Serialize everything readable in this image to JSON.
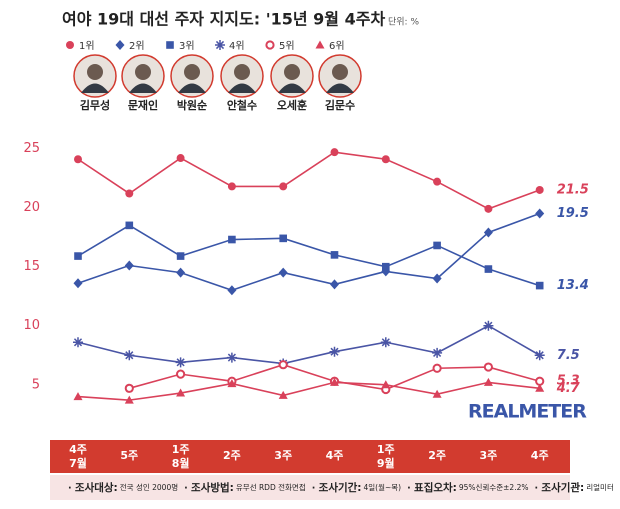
{
  "chart_data": {
    "type": "line",
    "title": "여야 19대 대선 주자 지지도: '15년 9월 4주차",
    "unit": "단위: %",
    "categories": [
      "4주",
      "5주",
      "1주",
      "2주",
      "3주",
      "4주",
      "1주",
      "2주",
      "3주",
      "4주"
    ],
    "sublabels": [
      "7월",
      null,
      "8월",
      null,
      null,
      null,
      "9월",
      null,
      null,
      null
    ],
    "ylim": [
      1,
      27
    ],
    "yticks": [
      5,
      10,
      15,
      20,
      25
    ],
    "series": [
      {
        "name": "1위",
        "candidate": "김무성",
        "color": "#d9415a",
        "marker": "circle",
        "values": [
          24.1,
          21.2,
          24.2,
          21.8,
          21.8,
          24.7,
          24.1,
          22.2,
          19.9,
          21.5
        ]
      },
      {
        "name": "2위",
        "candidate": "문재인",
        "color": "#3a56a8",
        "marker": "diamond",
        "values": [
          13.6,
          15.1,
          14.5,
          13.0,
          14.5,
          13.5,
          14.6,
          14.0,
          17.9,
          19.5
        ]
      },
      {
        "name": "3위",
        "candidate": "박원순",
        "color": "#3a56a8",
        "marker": "square",
        "values": [
          15.9,
          18.5,
          15.9,
          17.3,
          17.4,
          16.0,
          15.0,
          16.8,
          14.8,
          13.4
        ]
      },
      {
        "name": "4위",
        "candidate": "안철수",
        "color": "#4a55a5",
        "marker": "asterisk",
        "values": [
          8.6,
          7.5,
          6.9,
          7.3,
          6.8,
          7.8,
          8.6,
          7.7,
          10.0,
          7.5
        ]
      },
      {
        "name": "5위",
        "candidate": "오세훈",
        "color": "#d9415a",
        "marker": "circle-open",
        "values": [
          null,
          4.7,
          5.9,
          5.3,
          6.7,
          5.3,
          4.6,
          6.4,
          6.5,
          5.3
        ]
      },
      {
        "name": "6위",
        "candidate": "김문수",
        "color": "#d9415a",
        "marker": "triangle",
        "values": [
          4.0,
          3.7,
          4.3,
          5.1,
          4.1,
          5.2,
          5.0,
          4.2,
          5.2,
          4.7
        ]
      }
    ],
    "watermark": "REALMETER",
    "footer": [
      {
        "label": "조사대상:",
        "value": "전국 성인 2000명"
      },
      {
        "label": "조사방법:",
        "value": "유무선 RDD 전화면접"
      },
      {
        "label": "조사기간:",
        "value": "4일(월~목)"
      },
      {
        "label": "표집오차:",
        "value": "95%신뢰수준±2.2%"
      },
      {
        "label": "조사기관:",
        "value": "리얼미터"
      }
    ]
  }
}
